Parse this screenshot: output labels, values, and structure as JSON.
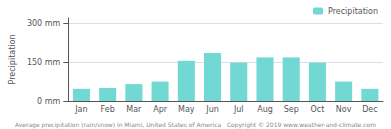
{
  "chart_data": {
    "type": "bar",
    "categories": [
      "Jan",
      "Feb",
      "Mar",
      "Apr",
      "May",
      "Jun",
      "Jul",
      "Aug",
      "Sep",
      "Oct",
      "Nov",
      "Dec"
    ],
    "series": [
      {
        "name": "Precipitation",
        "color": "#72D8D4",
        "values": [
          47,
          50,
          65,
          75,
          155,
          185,
          148,
          168,
          168,
          148,
          75,
          47
        ]
      }
    ],
    "ylabel": "Precipitation",
    "ylim": [
      0,
      320
    ],
    "yticks": [
      {
        "value": 0,
        "label": "0 mm"
      },
      {
        "value": 150,
        "label": "150 mm"
      },
      {
        "value": 300,
        "label": "300 mm"
      }
    ],
    "grid": true,
    "legend": "upper right",
    "annotations": [
      "Average precipitation (rain/snow) in Miami, United States of America   Copyright © 2019 www.weather-and-climate.com"
    ]
  }
}
